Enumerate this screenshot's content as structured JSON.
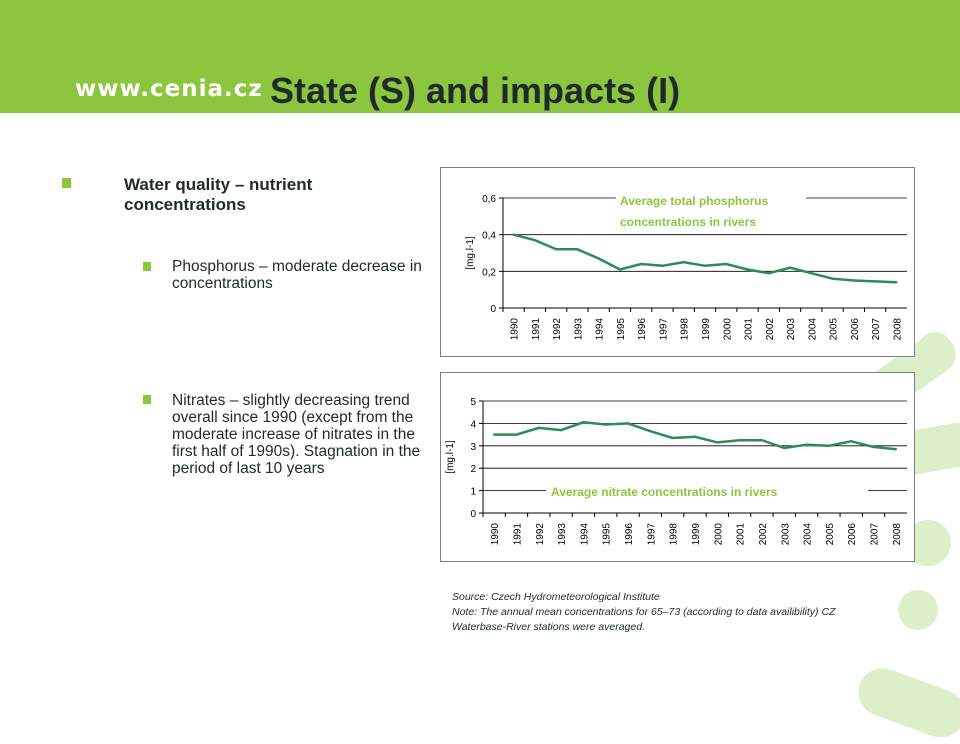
{
  "header": {
    "logo": "www.cenia.cz",
    "title": "State (S) and impacts (I)"
  },
  "bullets": {
    "main": "Water quality – nutrient concentrations",
    "sub1": "Phosphorus – moderate decrease in concentrations",
    "sub2": "Nitrates – slightly decreasing trend overall since 1990 (except from the moderate increase of nitrates in the first half of 1990s). Stagnation in the period of last 10 years"
  },
  "colors": {
    "header_bg": "#8cc63f",
    "series_line": "#2e8b57",
    "title_green": "#8cc63f"
  },
  "chart_data": [
    {
      "type": "line",
      "title": "Average total phosphorus concentrations in rivers",
      "ylabel": "[mg.l-1]",
      "x": [
        "1990",
        "1991",
        "1992",
        "1993",
        "1994",
        "1995",
        "1996",
        "1997",
        "1998",
        "1999",
        "2000",
        "2001",
        "2002",
        "2003",
        "2004",
        "2005",
        "2006",
        "2007",
        "2008"
      ],
      "values": [
        0.4,
        0.37,
        0.32,
        0.32,
        0.27,
        0.21,
        0.24,
        0.23,
        0.25,
        0.23,
        0.24,
        0.21,
        0.19,
        0.22,
        0.19,
        0.16,
        0.15,
        0.145,
        0.14
      ],
      "ylim": [
        0,
        0.6
      ],
      "yticks": [
        "0",
        "0,2",
        "0,4",
        "0,6"
      ],
      "grid": true
    },
    {
      "type": "line",
      "title": "Average nitrate concentrations in rivers",
      "ylabel": "[mg.l-1]",
      "x": [
        "1990",
        "1991",
        "1992",
        "1993",
        "1994",
        "1995",
        "1996",
        "1997",
        "1998",
        "1999",
        "2000",
        "2001",
        "2002",
        "2003",
        "2004",
        "2005",
        "2006",
        "2007",
        "2008"
      ],
      "values": [
        3.5,
        3.5,
        3.8,
        3.7,
        4.05,
        3.95,
        4.0,
        3.65,
        3.35,
        3.4,
        3.15,
        3.25,
        3.25,
        2.9,
        3.05,
        3.0,
        3.2,
        2.95,
        2.85
      ],
      "ylim": [
        0,
        5
      ],
      "yticks": [
        "0",
        "1",
        "2",
        "3",
        "4",
        "5"
      ],
      "grid": true
    }
  ],
  "source": {
    "line1": "Source: Czech Hydrometeorological Institute",
    "line2": "Note: The annual mean concentrations for 65–73 (according to data availibility) CZ Waterbase-River stations were averaged."
  }
}
